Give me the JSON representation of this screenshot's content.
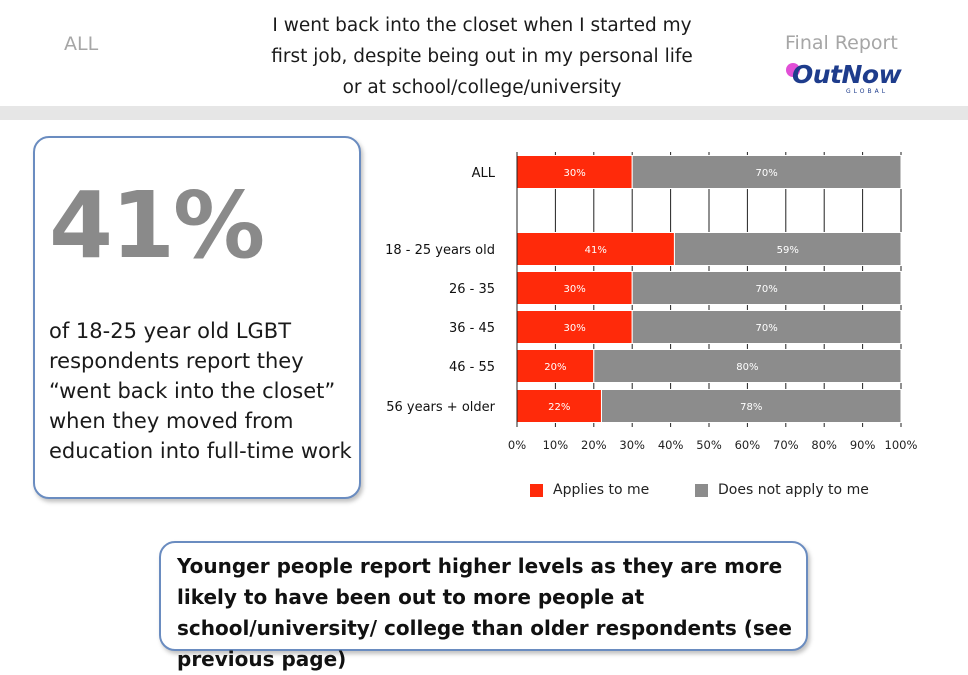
{
  "header": {
    "left_label": "ALL",
    "title": "I went back into the closet when I started my first job, despite being out in my personal life or at school/college/university",
    "right_label": "Final Report",
    "logo_text": "OutNow",
    "logo_sub": "GLOBAL"
  },
  "stat": {
    "value": "41%",
    "description": "of 18-25 year old LGBT respondents report they “went back into the closet” when they moved from education into full-time work"
  },
  "note": {
    "text": "Younger people report higher levels as they are more likely to have been out to more people at school/university/ college than older respondents (see previous page)"
  },
  "colors": {
    "applies": "#ff2a0a",
    "not_applies": "#8c8c8c"
  },
  "chart_data": {
    "type": "bar",
    "orientation": "horizontal",
    "stacked": true,
    "categories": [
      "ALL",
      "18 - 25 years old",
      "26 - 35",
      "36 - 45",
      "46 - 55",
      "56 years + older"
    ],
    "series": [
      {
        "name": "Applies to me",
        "values": [
          30,
          41,
          30,
          30,
          20,
          22
        ],
        "labels": [
          "30%",
          "41%",
          "30%",
          "30%",
          "20%",
          "22%"
        ]
      },
      {
        "name": "Does not apply to me",
        "values": [
          70,
          59,
          70,
          70,
          80,
          78
        ],
        "labels": [
          "70%",
          "59%",
          "70%",
          "70%",
          "80%",
          "78%"
        ]
      }
    ],
    "xlim": [
      0,
      100
    ],
    "xticks": [
      "0%",
      "10%",
      "20%",
      "30%",
      "40%",
      "50%",
      "60%",
      "70%",
      "80%",
      "90%",
      "100%"
    ],
    "grid": true,
    "legend_position": "bottom"
  }
}
